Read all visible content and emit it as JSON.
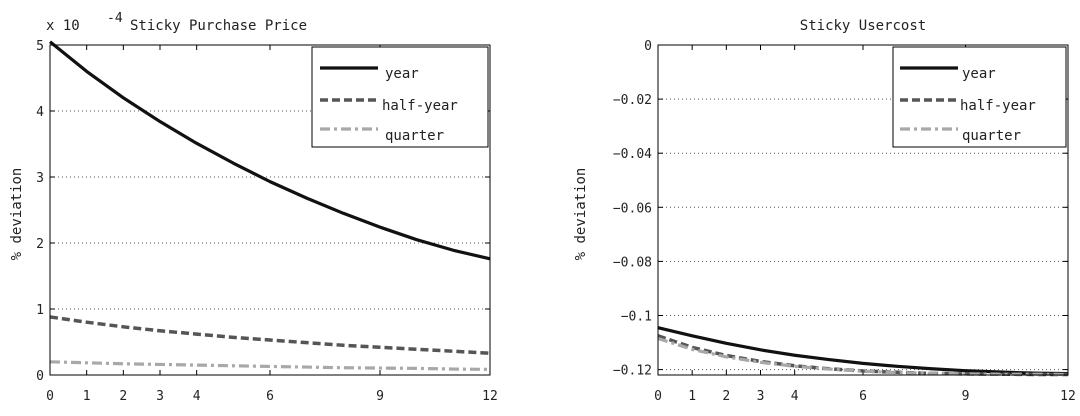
{
  "chart_data": [
    {
      "type": "line",
      "title": "Sticky Purchase Price",
      "exponent_label": "x 10",
      "exponent_sup": "-4",
      "xlabel": "",
      "ylabel": "% deviation",
      "xlim": [
        0,
        12
      ],
      "ylim": [
        0,
        5
      ],
      "xticks": [
        0,
        1,
        2,
        3,
        4,
        6,
        9,
        12
      ],
      "xtick_labels": [
        "0",
        "1",
        "2",
        "3",
        "4",
        "6",
        "9",
        "12"
      ],
      "yticks": [
        0,
        1,
        2,
        3,
        4,
        5
      ],
      "ytick_labels": [
        "0",
        "1",
        "2",
        "3",
        "4",
        "5"
      ],
      "grid": "horizontal dotted",
      "legend_position": "top-right",
      "x": [
        0,
        1,
        2,
        3,
        4,
        5,
        6,
        7,
        8,
        9,
        10,
        11,
        12
      ],
      "series": [
        {
          "name": "year",
          "color": "#111111",
          "style": "solid",
          "values": [
            5.05,
            4.6,
            4.2,
            3.84,
            3.51,
            3.21,
            2.93,
            2.68,
            2.45,
            2.24,
            2.05,
            1.89,
            1.76
          ]
        },
        {
          "name": "half-year",
          "color": "#555555",
          "style": "dashed",
          "values": [
            0.88,
            0.8,
            0.73,
            0.67,
            0.62,
            0.57,
            0.53,
            0.49,
            0.45,
            0.42,
            0.39,
            0.36,
            0.33
          ]
        },
        {
          "name": "quarter",
          "color": "#a8a8a8",
          "style": "dashdot",
          "values": [
            0.2,
            0.185,
            0.17,
            0.16,
            0.15,
            0.14,
            0.13,
            0.12,
            0.11,
            0.105,
            0.1,
            0.09,
            0.085
          ]
        }
      ]
    },
    {
      "type": "line",
      "title": "Sticky Usercost",
      "xlabel": "",
      "ylabel": "% deviation",
      "xlim": [
        0,
        12
      ],
      "ylim": [
        -0.122,
        0
      ],
      "xticks": [
        0,
        1,
        2,
        3,
        4,
        6,
        9,
        12
      ],
      "xtick_labels": [
        "0",
        "1",
        "2",
        "3",
        "4",
        "6",
        "9",
        "12"
      ],
      "yticks": [
        0,
        -0.02,
        -0.04,
        -0.06,
        -0.08,
        -0.1,
        -0.12
      ],
      "ytick_labels": [
        "0",
        "−0.02",
        "−0.04",
        "−0.06",
        "−0.08",
        "−0.1",
        "−0.12"
      ],
      "grid": "horizontal dotted",
      "legend_position": "top-right",
      "x": [
        0,
        1,
        2,
        3,
        4,
        5,
        6,
        7,
        8,
        9,
        10,
        11,
        12
      ],
      "series": [
        {
          "name": "year",
          "color": "#111111",
          "style": "solid",
          "values": [
            -0.1045,
            -0.1075,
            -0.1103,
            -0.1127,
            -0.1147,
            -0.1163,
            -0.1177,
            -0.1188,
            -0.1197,
            -0.1204,
            -0.1209,
            -0.1213,
            -0.1215
          ]
        },
        {
          "name": "half-year",
          "color": "#555555",
          "style": "dashed",
          "values": [
            -0.1075,
            -0.1118,
            -0.1148,
            -0.117,
            -0.1186,
            -0.1197,
            -0.1205,
            -0.121,
            -0.1214,
            -0.1216,
            -0.1217,
            -0.1218,
            -0.1218
          ]
        },
        {
          "name": "quarter",
          "color": "#a8a8a8",
          "style": "dashdot",
          "values": [
            -0.1085,
            -0.1125,
            -0.1153,
            -0.1173,
            -0.1188,
            -0.1198,
            -0.1206,
            -0.1211,
            -0.1214,
            -0.1216,
            -0.1217,
            -0.1217,
            -0.1218
          ]
        }
      ]
    }
  ]
}
